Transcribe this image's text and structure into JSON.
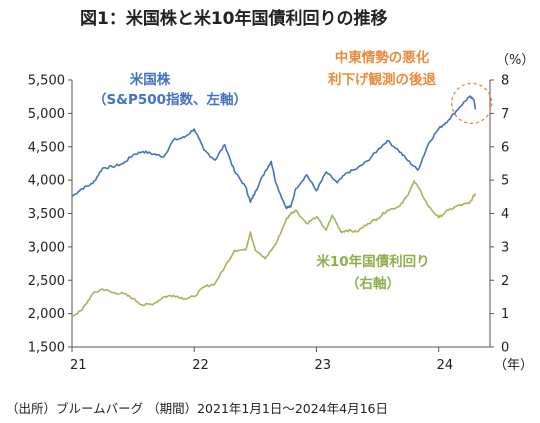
{
  "title": "図1：米国株と米10年国債利回りの推移",
  "source": "（出所）ブルームバーグ （期間）2021年1月1日～2024年4月16日",
  "chart_data": {
    "type": "line",
    "title": "図1：米国株と米10年国債利回りの推移",
    "x_unit_label": "（年）",
    "y2_unit_label": "（%）",
    "x_ticks": [
      "21",
      "22",
      "23",
      "24"
    ],
    "x_range": [
      2021.0,
      2024.42
    ],
    "y_left": {
      "ticks": [
        1500,
        2000,
        2500,
        3000,
        3500,
        4000,
        4500,
        5000,
        5500
      ],
      "tick_labels": [
        "1,500",
        "2,000",
        "2,500",
        "3,000",
        "3,500",
        "4,000",
        "4,500",
        "5,000",
        "5,500"
      ],
      "range": [
        1500,
        5500
      ]
    },
    "y_right": {
      "ticks": [
        0,
        1,
        2,
        3,
        4,
        5,
        6,
        7,
        8
      ],
      "tick_labels": [
        "0",
        "1",
        "2",
        "3",
        "4",
        "5",
        "6",
        "7",
        "8"
      ],
      "range": [
        0,
        8
      ]
    },
    "series": [
      {
        "name": "米国株（S&P500指数、左軸）",
        "axis": "left",
        "color": "#4472C4",
        "points": [
          [
            2021.0,
            3756
          ],
          [
            2021.08,
            3870
          ],
          [
            2021.17,
            3950
          ],
          [
            2021.25,
            4180
          ],
          [
            2021.33,
            4200
          ],
          [
            2021.42,
            4250
          ],
          [
            2021.5,
            4380
          ],
          [
            2021.58,
            4430
          ],
          [
            2021.67,
            4390
          ],
          [
            2021.75,
            4350
          ],
          [
            2021.83,
            4600
          ],
          [
            2021.92,
            4640
          ],
          [
            2022.0,
            4766
          ],
          [
            2022.08,
            4450
          ],
          [
            2022.17,
            4300
          ],
          [
            2022.25,
            4530
          ],
          [
            2022.33,
            4130
          ],
          [
            2022.42,
            3900
          ],
          [
            2022.46,
            3670
          ],
          [
            2022.5,
            3830
          ],
          [
            2022.58,
            4130
          ],
          [
            2022.63,
            4280
          ],
          [
            2022.67,
            3950
          ],
          [
            2022.75,
            3590
          ],
          [
            2022.79,
            3600
          ],
          [
            2022.83,
            3870
          ],
          [
            2022.92,
            4080
          ],
          [
            2023.0,
            3840
          ],
          [
            2023.08,
            4120
          ],
          [
            2023.17,
            3960
          ],
          [
            2023.25,
            4110
          ],
          [
            2023.33,
            4170
          ],
          [
            2023.42,
            4290
          ],
          [
            2023.5,
            4450
          ],
          [
            2023.58,
            4590
          ],
          [
            2023.67,
            4450
          ],
          [
            2023.75,
            4290
          ],
          [
            2023.83,
            4150
          ],
          [
            2023.92,
            4560
          ],
          [
            2024.0,
            4770
          ],
          [
            2024.08,
            4900
          ],
          [
            2024.17,
            5090
          ],
          [
            2024.25,
            5250
          ],
          [
            2024.29,
            5200
          ],
          [
            2024.3,
            5060
          ]
        ]
      },
      {
        "name": "米10年国債利回り（右軸）",
        "axis": "right",
        "color": "#9BBB59",
        "points": [
          [
            2021.0,
            0.92
          ],
          [
            2021.08,
            1.1
          ],
          [
            2021.17,
            1.6
          ],
          [
            2021.25,
            1.74
          ],
          [
            2021.33,
            1.63
          ],
          [
            2021.42,
            1.6
          ],
          [
            2021.5,
            1.45
          ],
          [
            2021.58,
            1.25
          ],
          [
            2021.67,
            1.3
          ],
          [
            2021.75,
            1.5
          ],
          [
            2021.83,
            1.55
          ],
          [
            2021.92,
            1.45
          ],
          [
            2022.0,
            1.51
          ],
          [
            2022.08,
            1.8
          ],
          [
            2022.17,
            1.9
          ],
          [
            2022.25,
            2.4
          ],
          [
            2022.33,
            2.9
          ],
          [
            2022.42,
            2.9
          ],
          [
            2022.46,
            3.45
          ],
          [
            2022.5,
            2.9
          ],
          [
            2022.58,
            2.65
          ],
          [
            2022.67,
            3.1
          ],
          [
            2022.75,
            3.8
          ],
          [
            2022.79,
            4.0
          ],
          [
            2022.83,
            4.1
          ],
          [
            2022.92,
            3.7
          ],
          [
            2023.0,
            3.9
          ],
          [
            2023.08,
            3.5
          ],
          [
            2023.13,
            3.95
          ],
          [
            2023.2,
            3.45
          ],
          [
            2023.25,
            3.5
          ],
          [
            2023.33,
            3.45
          ],
          [
            2023.42,
            3.7
          ],
          [
            2023.5,
            3.85
          ],
          [
            2023.58,
            4.1
          ],
          [
            2023.67,
            4.2
          ],
          [
            2023.75,
            4.55
          ],
          [
            2023.8,
            4.98
          ],
          [
            2023.83,
            4.8
          ],
          [
            2023.92,
            4.2
          ],
          [
            2024.0,
            3.88
          ],
          [
            2024.08,
            4.1
          ],
          [
            2024.17,
            4.25
          ],
          [
            2024.25,
            4.3
          ],
          [
            2024.3,
            4.6
          ]
        ]
      }
    ],
    "annotations": [
      {
        "lines": [
          "米国株",
          "（S&P500指数、左軸）"
        ],
        "color": "#4472C4"
      },
      {
        "lines": [
          "米10年国債利回り",
          "（右軸）"
        ],
        "color": "#8DB04A"
      },
      {
        "lines": [
          "中東情勢の悪化",
          "利下げ観測の後退"
        ],
        "color": "#ED8A3A"
      }
    ],
    "highlight": {
      "x": 2024.27,
      "y_left": 5150,
      "color": "#ED8A3A",
      "style": "dashed-circle"
    }
  }
}
